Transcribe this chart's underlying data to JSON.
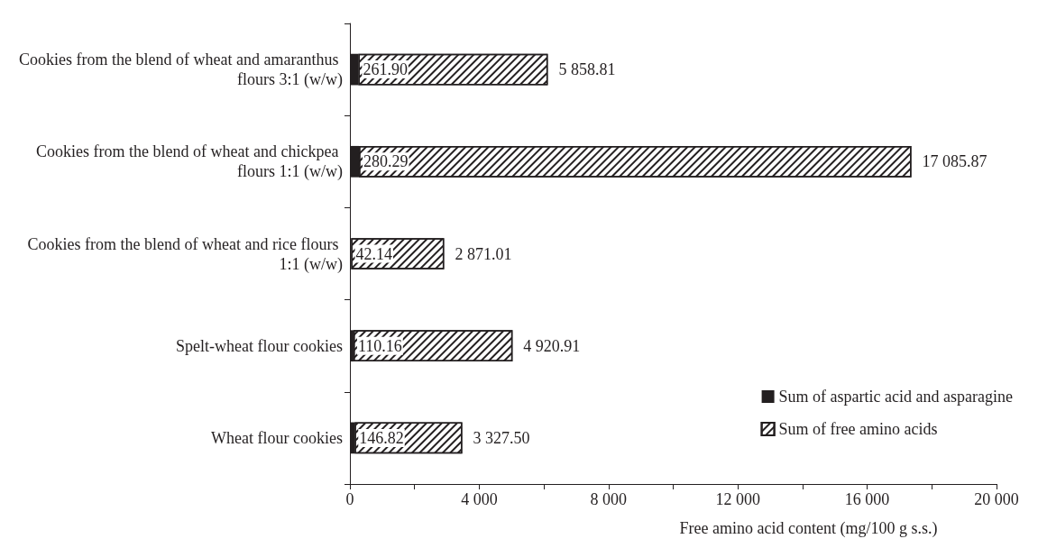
{
  "chart_data": {
    "type": "bar",
    "orientation": "horizontal",
    "stacked": true,
    "xlabel": "Free amino acid content (mg/100 g s.s.)",
    "categories": [
      "Cookies from the blend of wheat and amaranthus flours 3:1 (w/w)",
      "Cookies from the blend of wheat and chickpea flours 1:1 (w/w)",
      "Cookies from the blend of wheat and rice flours 1:1 (w/w)",
      "Spelt-wheat flour cookies",
      "Wheat flour cookies"
    ],
    "series": [
      {
        "name": "Sum of aspartic acid and asparagine",
        "color": "#231f20",
        "values": [
          261.9,
          280.29,
          42.14,
          110.16,
          146.82
        ],
        "value_labels": [
          "261.90",
          "280.29",
          "42.14",
          "110.16",
          "146.82"
        ]
      },
      {
        "name": "Sum of free amino acids",
        "color": "#231f20",
        "values": [
          5858.81,
          17085.87,
          2871.01,
          4920.91,
          3327.5
        ],
        "value_labels": [
          "5 858.81",
          "17 085.87",
          "2 871.01",
          "4 920.91",
          "3 327.50"
        ]
      }
    ],
    "xlim": [
      0,
      20000
    ],
    "xticks": [
      0,
      {
        "value": 2000,
        "label": null
      },
      {
        "value": 4000,
        "label": "4 000"
      },
      {
        "value": 6000,
        "label": null
      },
      {
        "value": 8000,
        "label": "8 000"
      },
      {
        "value": 10000,
        "label": null
      },
      {
        "value": 12000,
        "label": "12 000"
      },
      {
        "value": 14000,
        "label": null
      },
      {
        "value": 16000,
        "label": "16 000"
      },
      {
        "value": 18000,
        "label": null
      },
      {
        "value": 20000,
        "label": "20 000"
      }
    ],
    "grid": false,
    "legend": "bottom right"
  }
}
